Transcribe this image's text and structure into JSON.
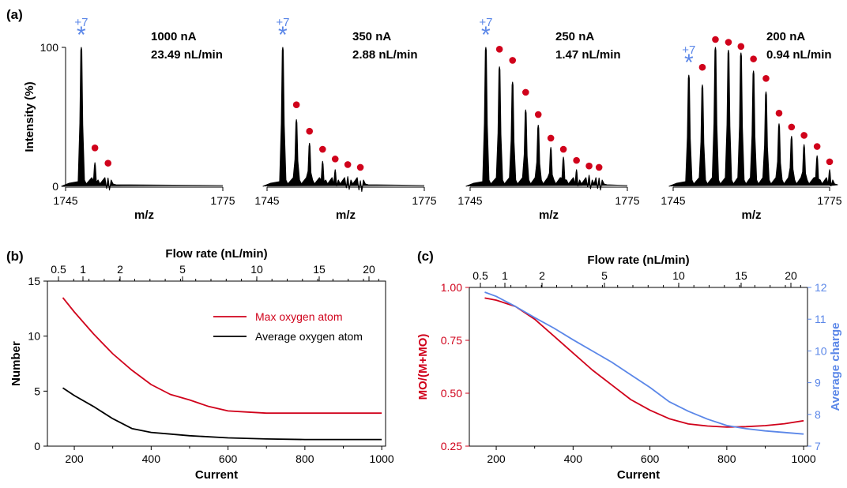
{
  "colors": {
    "red": "#d0021b",
    "blue": "#5b87e8",
    "black": "#000000"
  },
  "chart_data": [
    {
      "panel": "(a)",
      "type": "line",
      "xlabel": "m/z",
      "ylabel": "Intensity (%)",
      "xlim": [
        1745,
        1775
      ],
      "ylim": [
        0,
        100
      ],
      "xticks": [
        "1745",
        "1775"
      ],
      "yticks": [
        "0",
        "100"
      ],
      "star_label": "+7",
      "star_symbol": "*",
      "spectra": [
        {
          "current_label": "1000 nA",
          "flow_label": "23.49 nL/min",
          "star_mz": 1748.0,
          "peaks": [
            [
              1748.0,
              100
            ],
            [
              1750.6,
              17
            ],
            [
              1753.1,
              6
            ]
          ],
          "dots": [
            [
              1750.6,
              22
            ],
            [
              1753.1,
              11
            ]
          ]
        },
        {
          "current_label": "350 nA",
          "flow_label": "2.88 nL/min",
          "star_mz": 1748.0,
          "peaks": [
            [
              1748.0,
              100
            ],
            [
              1750.6,
              48
            ],
            [
              1753.1,
              31
            ],
            [
              1755.6,
              18
            ],
            [
              1758.0,
              12
            ],
            [
              1760.4,
              7
            ],
            [
              1762.8,
              4
            ]
          ],
          "dots": [
            [
              1750.6,
              53
            ],
            [
              1753.1,
              34
            ],
            [
              1755.6,
              21
            ],
            [
              1758.0,
              14
            ],
            [
              1760.4,
              10
            ],
            [
              1762.8,
              8
            ]
          ]
        },
        {
          "current_label": "250 nA",
          "flow_label": "1.47 nL/min",
          "star_mz": 1748.0,
          "peaks": [
            [
              1748.0,
              100
            ],
            [
              1750.6,
              86
            ],
            [
              1753.1,
              75
            ],
            [
              1755.6,
              55
            ],
            [
              1758.0,
              44
            ],
            [
              1760.4,
              28
            ],
            [
              1762.8,
              21
            ],
            [
              1765.3,
              12
            ],
            [
              1767.7,
              8
            ],
            [
              1769.6,
              6
            ]
          ],
          "dots": [
            [
              1750.6,
              93
            ],
            [
              1753.1,
              85
            ],
            [
              1755.6,
              62
            ],
            [
              1758.0,
              46
            ],
            [
              1760.4,
              29
            ],
            [
              1762.8,
              21
            ],
            [
              1765.3,
              13
            ],
            [
              1767.7,
              9
            ],
            [
              1769.6,
              8
            ]
          ]
        },
        {
          "current_label": "200 nA",
          "flow_label": "0.94 nL/min",
          "star_mz": 1748.0,
          "peaks": [
            [
              1748.0,
              80
            ],
            [
              1750.6,
              73
            ],
            [
              1753.1,
              100
            ],
            [
              1755.6,
              98
            ],
            [
              1758.0,
              96
            ],
            [
              1760.4,
              83
            ],
            [
              1762.8,
              68
            ],
            [
              1765.3,
              45
            ],
            [
              1767.7,
              36
            ],
            [
              1770.1,
              30
            ],
            [
              1772.6,
              22
            ],
            [
              1775.0,
              12
            ]
          ],
          "dots": [
            [
              1750.6,
              80
            ],
            [
              1753.1,
              100
            ],
            [
              1755.6,
              98
            ],
            [
              1758.0,
              95
            ],
            [
              1760.4,
              86
            ],
            [
              1762.8,
              72
            ],
            [
              1765.3,
              47
            ],
            [
              1767.7,
              37
            ],
            [
              1770.1,
              31
            ],
            [
              1772.6,
              23
            ],
            [
              1775.0,
              12
            ]
          ]
        }
      ]
    },
    {
      "panel": "(b)",
      "type": "line",
      "xlabel": "Current",
      "ylabel": "Number",
      "top_xlabel": "Flow rate (nL/min)",
      "xlim": [
        130,
        1010
      ],
      "ylim": [
        0,
        15
      ],
      "xticks": [
        200,
        400,
        600,
        800,
        1000
      ],
      "yticks": [
        0,
        5,
        10,
        15
      ],
      "top_xticks": [
        "0.5",
        "1",
        "2",
        "5",
        "10",
        "15",
        "20"
      ],
      "legend_position": "top-right",
      "series": [
        {
          "name": "Max oxygen atom",
          "color": "#d0021b",
          "x": [
            170,
            200,
            250,
            300,
            350,
            400,
            450,
            500,
            550,
            600,
            650,
            700,
            800,
            900,
            1000
          ],
          "y": [
            13.5,
            12.2,
            10.2,
            8.4,
            6.9,
            5.6,
            4.7,
            4.2,
            3.6,
            3.2,
            3.1,
            3.0,
            3.0,
            3.0,
            3.0
          ]
        },
        {
          "name": "Average oxygen atom",
          "color": "#000000",
          "x": [
            170,
            200,
            250,
            300,
            350,
            400,
            450,
            500,
            600,
            700,
            800,
            900,
            1000
          ],
          "y": [
            5.3,
            4.6,
            3.6,
            2.5,
            1.6,
            1.25,
            1.1,
            0.95,
            0.75,
            0.65,
            0.6,
            0.6,
            0.6
          ]
        }
      ]
    },
    {
      "panel": "(c)",
      "type": "line",
      "xlabel": "Current",
      "ylabel": "MO/(M+MO)",
      "ylabel_right": "Average charge",
      "top_xlabel": "Flow rate (nL/min)",
      "xlim": [
        130,
        1010
      ],
      "ylim": [
        0.25,
        1.0
      ],
      "ylim_right": [
        7,
        12
      ],
      "xticks": [
        200,
        400,
        600,
        800,
        1000
      ],
      "yticks": [
        "0.25",
        "0.50",
        "0.75",
        "1.00"
      ],
      "yticks_right": [
        7,
        8,
        9,
        10,
        11,
        12
      ],
      "top_xticks": [
        "0.5",
        "1",
        "2",
        "5",
        "10",
        "15",
        "20"
      ],
      "series": [
        {
          "name": "MO/(M+MO)",
          "axis": "left",
          "color": "#d0021b",
          "x": [
            170,
            200,
            250,
            300,
            350,
            400,
            450,
            500,
            550,
            600,
            650,
            700,
            750,
            800,
            850,
            900,
            950,
            1000
          ],
          "y": [
            0.95,
            0.94,
            0.91,
            0.85,
            0.77,
            0.69,
            0.61,
            0.54,
            0.47,
            0.42,
            0.38,
            0.355,
            0.345,
            0.34,
            0.342,
            0.347,
            0.356,
            0.37
          ]
        },
        {
          "name": "Average charge",
          "axis": "right",
          "color": "#5b87e8",
          "x": [
            170,
            200,
            250,
            300,
            350,
            400,
            450,
            500,
            550,
            600,
            650,
            700,
            750,
            800,
            850,
            900,
            950,
            1000
          ],
          "y": [
            11.85,
            11.72,
            11.4,
            11.05,
            10.72,
            10.35,
            10.0,
            9.65,
            9.25,
            8.85,
            8.4,
            8.1,
            7.85,
            7.65,
            7.55,
            7.48,
            7.43,
            7.38
          ]
        }
      ]
    }
  ]
}
